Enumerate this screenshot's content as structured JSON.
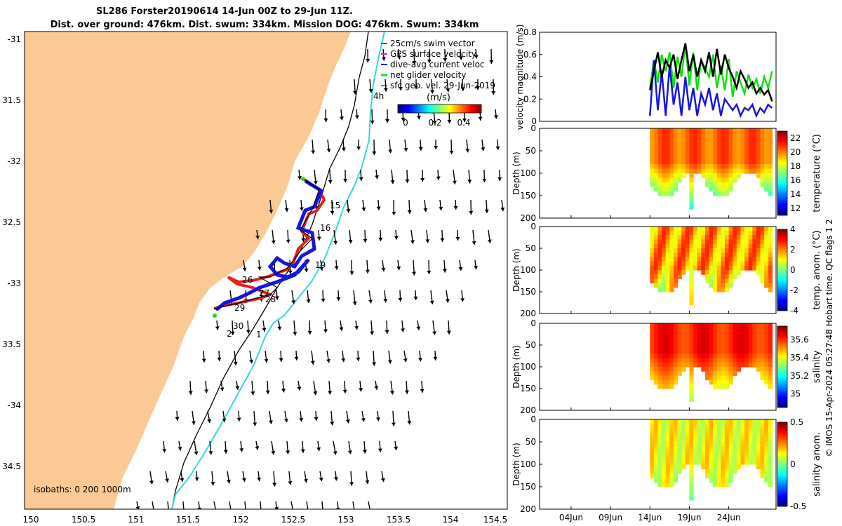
{
  "title": {
    "line1": "SL286 Forster20190614 14-Jun 00Z to 29-Jun 11Z.",
    "line2": "Dist. over ground: 476km. Dist. swum: 334km. Mission DOG: 476km. Swum: 334km"
  },
  "footer": "© IMOS 15-Apr-2024 05:27:48 Hobart time. QC flags 1  2",
  "map": {
    "lon_ticks": [
      "150",
      "150.5",
      "151",
      "151.5",
      "152",
      "152.5",
      "153",
      "153.5",
      "154",
      "154.5"
    ],
    "lat_ticks": [
      "-31",
      "31.5",
      "-32",
      "32.5",
      "-33",
      "33.5",
      "-34",
      "34.5"
    ],
    "legend": [
      "25cm/s swim vector",
      "GPS surface velocity",
      "dive-avg current veloc",
      "net glider velocity",
      "sfc geo. vel. 29-Jun-2019"
    ],
    "colorbar_label": "(m/s)",
    "colorbar_ticks": [
      "0",
      "0.2",
      "0.4"
    ],
    "isobaths": "isobaths: 0   200  1000m",
    "day_labels": [
      "15",
      "16",
      "19",
      "26",
      "27",
      "28",
      "29",
      "30",
      "2",
      "1",
      "4h"
    ],
    "colors": {
      "land": "#fbc995",
      "swim": "#e8201a",
      "dive": "#1515e0",
      "net": "#12e012",
      "iso200": "#000000",
      "iso1000": "#3ad6d6"
    }
  },
  "chart_data": [
    {
      "type": "line",
      "title": "",
      "ylabel": "velocity magnitude (m/s)",
      "ylim": [
        0,
        0.8
      ],
      "yticks": [
        "0",
        "0.2",
        "0.4",
        "0.6",
        "0.8"
      ],
      "series": [
        {
          "name": "net glider velocity",
          "color": "#12e012",
          "x": [
            14.0,
            14.5,
            15.0,
            15.5,
            16.0,
            16.5,
            17.0,
            17.5,
            18.0,
            18.5,
            19.0,
            19.5,
            20.0,
            20.5,
            21.0,
            21.5,
            22.0,
            22.5,
            23.0,
            23.5,
            24.0,
            24.5,
            25.0,
            25.5,
            26.0,
            26.5,
            27.0,
            27.5,
            28.0,
            28.5,
            29.0,
            29.5
          ],
          "y": [
            0.3,
            0.55,
            0.35,
            0.6,
            0.45,
            0.62,
            0.3,
            0.58,
            0.4,
            0.7,
            0.32,
            0.62,
            0.28,
            0.55,
            0.48,
            0.4,
            0.6,
            0.3,
            0.5,
            0.28,
            0.56,
            0.22,
            0.45,
            0.35,
            0.25,
            0.42,
            0.3,
            0.38,
            0.25,
            0.4,
            0.3,
            0.45
          ]
        },
        {
          "name": "dive-avg current veloc",
          "color": "#1515e0",
          "x": [
            14.0,
            14.5,
            15.0,
            15.5,
            16.0,
            16.5,
            17.0,
            17.5,
            18.0,
            18.5,
            19.0,
            19.5,
            20.0,
            20.5,
            21.0,
            21.5,
            22.0,
            22.5,
            23.0,
            23.5,
            24.0,
            24.5,
            25.0,
            25.5,
            26.0,
            26.5,
            27.0,
            27.5,
            28.0,
            28.5,
            29.0,
            29.5
          ],
          "y": [
            0.05,
            0.55,
            0.1,
            0.45,
            0.05,
            0.5,
            0.15,
            0.35,
            0.05,
            0.4,
            0.1,
            0.3,
            0.05,
            0.25,
            0.15,
            0.3,
            0.1,
            0.25,
            0.05,
            0.2,
            0.15,
            0.1,
            0.15,
            0.05,
            0.12,
            0.1,
            0.15,
            0.05,
            0.12,
            0.08,
            0.15,
            0.12
          ]
        },
        {
          "name": "GPS surface velocity",
          "color": "#000000",
          "x": [
            14.0,
            14.5,
            15.0,
            15.5,
            16.0,
            16.5,
            17.0,
            17.5,
            18.0,
            18.5,
            19.0,
            19.5,
            20.0,
            20.5,
            21.0,
            21.5,
            22.0,
            22.5,
            23.0,
            23.5,
            24.0,
            24.5,
            25.0,
            25.5,
            26.0,
            26.5,
            27.0,
            27.5,
            28.0,
            28.5,
            29.0,
            29.5
          ],
          "y": [
            0.28,
            0.45,
            0.62,
            0.4,
            0.55,
            0.48,
            0.6,
            0.38,
            0.55,
            0.7,
            0.45,
            0.6,
            0.4,
            0.55,
            0.45,
            0.62,
            0.4,
            0.65,
            0.42,
            0.6,
            0.48,
            0.4,
            0.3,
            0.45,
            0.38,
            0.3,
            0.35,
            0.25,
            0.3,
            0.24,
            0.28,
            0.18
          ]
        }
      ]
    },
    {
      "type": "heatmap",
      "ylabel": "Depth (m)",
      "ylim": [
        200,
        0
      ],
      "yticks": [
        "0",
        "50",
        "100",
        "150",
        "200"
      ],
      "colorbar_label": "temperature (°C)",
      "colorbar_ticks": [
        "22",
        "20",
        "18",
        "16",
        "14",
        "12"
      ],
      "crange": [
        11,
        23
      ]
    },
    {
      "type": "heatmap",
      "ylabel": "Depth (m)",
      "ylim": [
        200,
        0
      ],
      "yticks": [
        "0",
        "50",
        "100",
        "150",
        "200"
      ],
      "colorbar_label": "temp. anom. (°C)",
      "colorbar_ticks": [
        "4",
        "2",
        "0",
        "-2",
        "-4"
      ],
      "crange": [
        -4,
        4
      ]
    },
    {
      "type": "heatmap",
      "ylabel": "Depth (m)",
      "ylim": [
        200,
        0
      ],
      "yticks": [
        "0",
        "50",
        "100",
        "150",
        "200"
      ],
      "colorbar_label": "salinity",
      "colorbar_ticks": [
        "35.6",
        "35.4",
        "35.2",
        "35"
      ],
      "crange": [
        34.85,
        35.75
      ]
    },
    {
      "type": "heatmap",
      "ylabel": "Depth (m)",
      "ylim": [
        200,
        0
      ],
      "yticks": [
        "0",
        "50",
        "100",
        "150",
        "200"
      ],
      "colorbar_label": "salinity anom.",
      "colorbar_ticks": [
        "0.5",
        "0",
        "-0.5"
      ],
      "crange": [
        -0.5,
        0.5
      ],
      "xticks": [
        "04Jun",
        "09Jun",
        "14Jun",
        "19Jun",
        "24Jun"
      ]
    }
  ]
}
